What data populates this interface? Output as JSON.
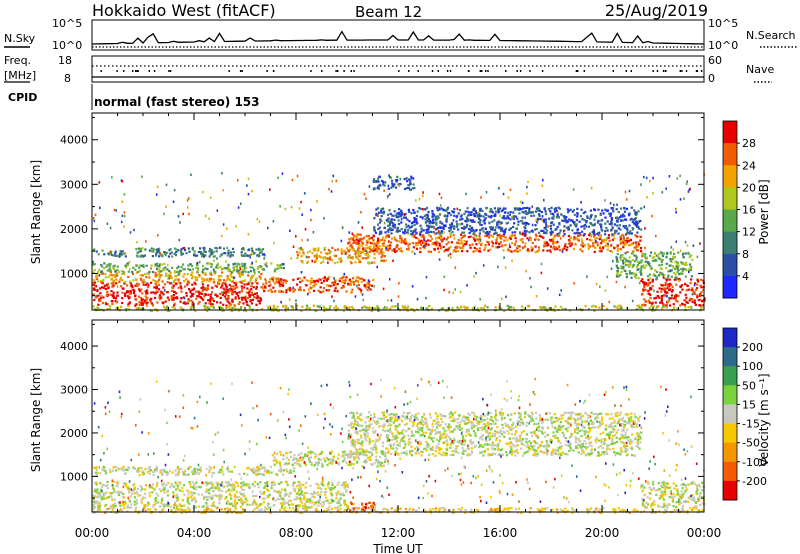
{
  "header": {
    "radar": "Hokkaido West (fitACF)",
    "beam": "Beam 12",
    "date": "25/Aug/2019"
  },
  "status_panel": {
    "nsky_label": "N.Sky",
    "nsearch_label": "N.Search",
    "freq_label_top": "Freq.",
    "freq_label_unit": "[MHz]",
    "cpid_label": "CPID",
    "nave_label": "Nave",
    "nsky_ticks": [
      "10^5",
      "10^0"
    ],
    "nsearch_ticks": [
      "10^5",
      "10^0"
    ],
    "freq_ticks": [
      "18",
      "8"
    ],
    "nave_ticks": [
      "60",
      "0"
    ],
    "cpid_text": "normal (fast stereo) 153"
  },
  "chart_data": [
    {
      "type": "heatmap",
      "panel": "power",
      "xlabel": "",
      "ylabel": "Slant Range [km]",
      "x_ticks": [
        "00:00",
        "04:00",
        "08:00",
        "12:00",
        "16:00",
        "20:00",
        "00:00"
      ],
      "y_ticks": [
        1000,
        2000,
        3000,
        4000
      ],
      "ylim": [
        180,
        4600
      ],
      "xlim_hours": [
        0,
        24
      ],
      "colorbar_label": "Power [dB]",
      "colorbar_ticks": [
        "4",
        "8",
        "12",
        "16",
        "20",
        "24",
        "28"
      ],
      "colors": [
        "#1e28ff",
        "#2a4fa8",
        "#3c7f72",
        "#59a84a",
        "#b0c81e",
        "#f2a300",
        "#f25c00",
        "#e60000"
      ],
      "bands": [
        {
          "t0": 0.0,
          "t1": 6.6,
          "r0": 300,
          "r1": 820,
          "level": 7
        },
        {
          "t0": 0.0,
          "t1": 6.6,
          "r0": 820,
          "r1": 1050,
          "level": 5
        },
        {
          "t0": 0.0,
          "t1": 7.5,
          "r0": 1050,
          "r1": 1250,
          "level": 3
        },
        {
          "t0": 0.0,
          "t1": 6.8,
          "r0": 1400,
          "r1": 1600,
          "level": 2
        },
        {
          "t0": 6.6,
          "t1": 11.0,
          "r0": 600,
          "r1": 950,
          "level": 6
        },
        {
          "t0": 8.0,
          "t1": 11.5,
          "r0": 1250,
          "r1": 1600,
          "level": 5
        },
        {
          "t0": 10.0,
          "t1": 21.5,
          "r0": 1500,
          "r1": 1900,
          "level": 6
        },
        {
          "t0": 11.0,
          "t1": 21.5,
          "r0": 1900,
          "r1": 2500,
          "level": 1
        },
        {
          "t0": 21.5,
          "t1": 24.0,
          "r0": 300,
          "r1": 900,
          "level": 7
        },
        {
          "t0": 20.5,
          "t1": 23.5,
          "r0": 900,
          "r1": 1500,
          "level": 3
        },
        {
          "t0": 11.0,
          "t1": 12.6,
          "r0": 2900,
          "r1": 3200,
          "level": 1
        },
        {
          "t0": 0.0,
          "t1": 24.0,
          "r0": 180,
          "r1": 300,
          "level": 4
        }
      ]
    },
    {
      "type": "heatmap",
      "panel": "velocity",
      "xlabel": "Time UT",
      "ylabel": "Slant Range [km]",
      "x_ticks": [
        "00:00",
        "04:00",
        "08:00",
        "12:00",
        "16:00",
        "20:00",
        "00:00"
      ],
      "y_ticks": [
        1000,
        2000,
        3000,
        4000
      ],
      "ylim": [
        180,
        4600
      ],
      "xlim_hours": [
        0,
        24
      ],
      "colorbar_label": "Velocity [m s⁻¹]",
      "colorbar_ticks": [
        "200",
        "100",
        "50",
        "15",
        "-15",
        "-50",
        "-100",
        "-200"
      ],
      "colors": [
        "#1e28c8",
        "#2e6a8a",
        "#3aa050",
        "#7ad23c",
        "#c8c8be",
        "#f5c800",
        "#f59600",
        "#f55a00",
        "#e60000"
      ],
      "bands": [
        {
          "t0": 0.0,
          "t1": 10.0,
          "r0": 300,
          "r1": 900,
          "level": 4
        },
        {
          "t0": 0.0,
          "t1": 8.0,
          "r0": 1050,
          "r1": 1250,
          "level": 4
        },
        {
          "t0": 7.0,
          "t1": 11.5,
          "r0": 1250,
          "r1": 1600,
          "level": 4
        },
        {
          "t0": 10.0,
          "t1": 21.5,
          "r0": 1500,
          "r1": 2500,
          "level": 4
        },
        {
          "t0": 21.5,
          "t1": 24.0,
          "r0": 300,
          "r1": 900,
          "level": 4
        },
        {
          "t0": 10.0,
          "t1": 11.2,
          "r0": 200,
          "r1": 450,
          "level": 7
        },
        {
          "t0": 0.0,
          "t1": 24.0,
          "r0": 180,
          "r1": 300,
          "level": 5
        }
      ]
    }
  ]
}
